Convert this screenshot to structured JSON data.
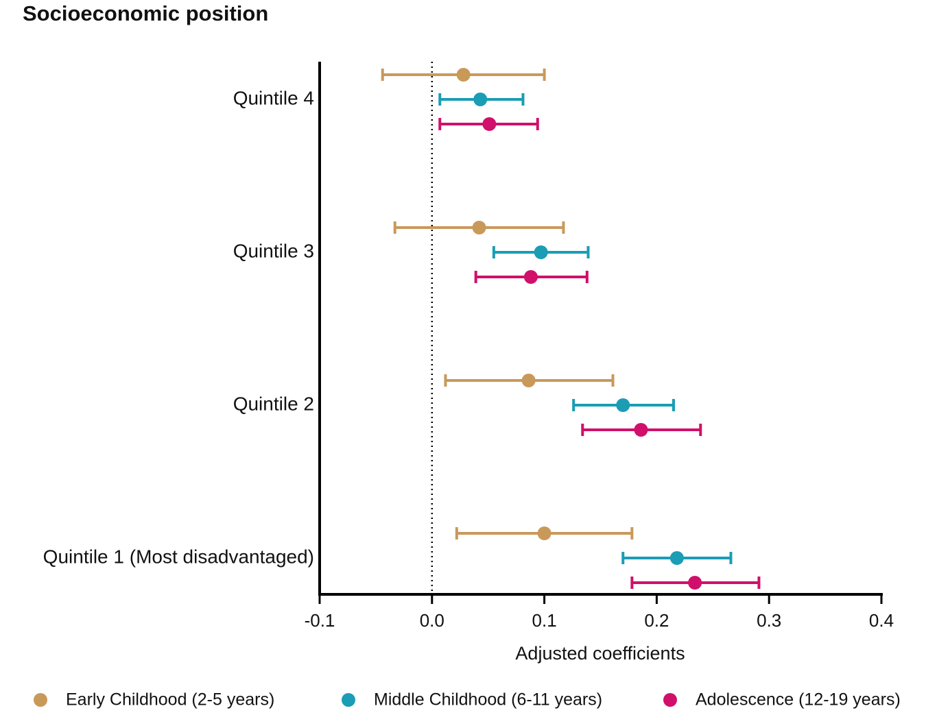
{
  "chart_data": {
    "type": "forest",
    "title": "Socioeconomic position",
    "x_label": "Adjusted coefficients",
    "categories": [
      "Quintile 4",
      "Quintile 3",
      "Quintile 2",
      "Quintile 1 (Most disadvantaged)"
    ],
    "series": [
      {
        "name": "Early Childhood (2-5 years)",
        "color": "#c9995a",
        "values": [
          0.028,
          0.042,
          0.086,
          0.1
        ],
        "lower": [
          -0.044,
          -0.033,
          0.012,
          0.022
        ],
        "upper": [
          0.1,
          0.117,
          0.161,
          0.178
        ]
      },
      {
        "name": "Middle Childhood (6-11 years)",
        "color": "#1a9db5",
        "values": [
          0.043,
          0.097,
          0.17,
          0.218
        ],
        "lower": [
          0.007,
          0.055,
          0.126,
          0.17
        ],
        "upper": [
          0.081,
          0.139,
          0.215,
          0.266
        ]
      },
      {
        "name": "Adolescence (12-19 years)",
        "color": "#d0106a",
        "values": [
          0.051,
          0.088,
          0.186,
          0.234
        ],
        "lower": [
          0.007,
          0.039,
          0.134,
          0.178
        ],
        "upper": [
          0.094,
          0.138,
          0.239,
          0.291
        ]
      }
    ],
    "xlim": [
      -0.1,
      0.4
    ],
    "xticks": [
      -0.1,
      {
        "value": 0,
        "label": "0.0"
      },
      0.1,
      0.2,
      0.3,
      0.4
    ],
    "reference_line": 0,
    "legend": "bottom"
  }
}
